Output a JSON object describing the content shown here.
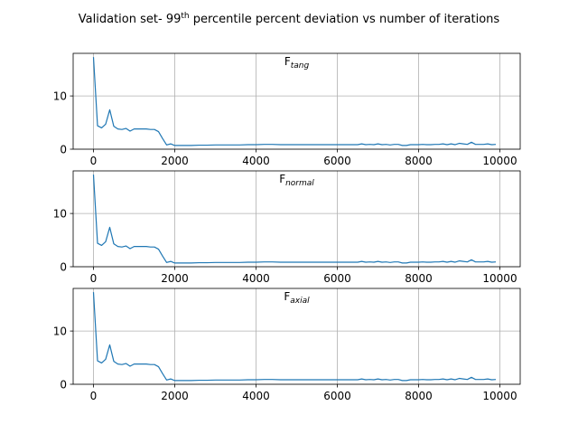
{
  "figure": {
    "suptitle_prefix": "Validation set- 99",
    "suptitle_superscript": "th",
    "suptitle_suffix": " percentile percent deviation vs number of iterations"
  },
  "colors": {
    "series": "#1f77b4",
    "grid": "#b0b0b0",
    "axis": "#000000"
  },
  "chart_data": [
    {
      "type": "line",
      "title_main": "F",
      "title_sub": "tang",
      "grid": true,
      "xlim": [
        -500,
        10500
      ],
      "ylim": [
        0,
        18
      ],
      "x_ticks": [
        0,
        2000,
        4000,
        6000,
        8000,
        10000
      ],
      "y_ticks": [
        0,
        10
      ],
      "x": [
        0,
        100,
        200,
        300,
        400,
        500,
        600,
        700,
        800,
        900,
        1000,
        1100,
        1200,
        1300,
        1400,
        1500,
        1600,
        1700,
        1800,
        1900,
        2000,
        2200,
        2400,
        2600,
        2800,
        3000,
        3200,
        3400,
        3600,
        3800,
        4000,
        4200,
        4400,
        4600,
        4800,
        5000,
        5200,
        5400,
        5600,
        5800,
        6000,
        6200,
        6400,
        6500,
        6600,
        6700,
        6800,
        6900,
        7000,
        7100,
        7200,
        7300,
        7400,
        7500,
        7600,
        7700,
        7800,
        7900,
        8000,
        8100,
        8200,
        8300,
        8400,
        8500,
        8600,
        8700,
        8800,
        8900,
        9000,
        9100,
        9200,
        9300,
        9400,
        9500,
        9600,
        9700,
        9800,
        9900
      ],
      "y": [
        17.3,
        4.4,
        4.0,
        4.7,
        7.4,
        4.3,
        3.8,
        3.7,
        3.9,
        3.4,
        3.8,
        3.8,
        3.8,
        3.8,
        3.7,
        3.7,
        3.3,
        2.0,
        0.8,
        1.0,
        0.7,
        0.7,
        0.7,
        0.75,
        0.75,
        0.8,
        0.8,
        0.8,
        0.8,
        0.85,
        0.85,
        0.9,
        0.9,
        0.85,
        0.85,
        0.85,
        0.85,
        0.85,
        0.85,
        0.85,
        0.85,
        0.85,
        0.85,
        0.85,
        1.0,
        0.85,
        0.9,
        0.85,
        1.0,
        0.85,
        0.9,
        0.8,
        0.9,
        0.9,
        0.7,
        0.7,
        0.85,
        0.85,
        0.85,
        0.9,
        0.85,
        0.85,
        0.9,
        0.9,
        1.0,
        0.85,
        1.0,
        0.85,
        1.1,
        1.0,
        0.9,
        1.3,
        0.9,
        0.9,
        0.9,
        1.0,
        0.85,
        0.9
      ]
    },
    {
      "type": "line",
      "title_main": "F",
      "title_sub": "normal",
      "grid": true,
      "xlim": [
        -500,
        10500
      ],
      "ylim": [
        0,
        18
      ],
      "x_ticks": [
        0,
        2000,
        4000,
        6000,
        8000,
        10000
      ],
      "y_ticks": [
        0,
        10
      ],
      "x": [
        0,
        100,
        200,
        300,
        400,
        500,
        600,
        700,
        800,
        900,
        1000,
        1100,
        1200,
        1300,
        1400,
        1500,
        1600,
        1700,
        1800,
        1900,
        2000,
        2200,
        2400,
        2600,
        2800,
        3000,
        3200,
        3400,
        3600,
        3800,
        4000,
        4200,
        4400,
        4600,
        4800,
        5000,
        5200,
        5400,
        5600,
        5800,
        6000,
        6200,
        6400,
        6500,
        6600,
        6700,
        6800,
        6900,
        7000,
        7100,
        7200,
        7300,
        7400,
        7500,
        7600,
        7700,
        7800,
        7900,
        8000,
        8100,
        8200,
        8300,
        8400,
        8500,
        8600,
        8700,
        8800,
        8900,
        9000,
        9100,
        9200,
        9300,
        9400,
        9500,
        9600,
        9700,
        9800,
        9900
      ],
      "y": [
        17.3,
        4.4,
        4.0,
        4.7,
        7.4,
        4.3,
        3.8,
        3.7,
        3.9,
        3.4,
        3.8,
        3.8,
        3.8,
        3.8,
        3.7,
        3.7,
        3.3,
        2.0,
        0.8,
        1.0,
        0.7,
        0.7,
        0.7,
        0.75,
        0.75,
        0.8,
        0.8,
        0.8,
        0.8,
        0.85,
        0.85,
        0.9,
        0.9,
        0.85,
        0.85,
        0.85,
        0.85,
        0.85,
        0.85,
        0.85,
        0.85,
        0.85,
        0.85,
        0.85,
        1.0,
        0.85,
        0.9,
        0.85,
        1.0,
        0.85,
        0.9,
        0.8,
        0.9,
        0.9,
        0.7,
        0.7,
        0.85,
        0.85,
        0.85,
        0.9,
        0.85,
        0.85,
        0.9,
        0.9,
        1.0,
        0.85,
        1.0,
        0.85,
        1.1,
        1.0,
        0.9,
        1.3,
        0.9,
        0.9,
        0.9,
        1.0,
        0.85,
        0.9
      ]
    },
    {
      "type": "line",
      "title_main": "F",
      "title_sub": "axial",
      "grid": true,
      "xlim": [
        -500,
        10500
      ],
      "ylim": [
        0,
        18
      ],
      "x_ticks": [
        0,
        2000,
        4000,
        6000,
        8000,
        10000
      ],
      "y_ticks": [
        0,
        10
      ],
      "x": [
        0,
        100,
        200,
        300,
        400,
        500,
        600,
        700,
        800,
        900,
        1000,
        1100,
        1200,
        1300,
        1400,
        1500,
        1600,
        1700,
        1800,
        1900,
        2000,
        2200,
        2400,
        2600,
        2800,
        3000,
        3200,
        3400,
        3600,
        3800,
        4000,
        4200,
        4400,
        4600,
        4800,
        5000,
        5200,
        5400,
        5600,
        5800,
        6000,
        6200,
        6400,
        6500,
        6600,
        6700,
        6800,
        6900,
        7000,
        7100,
        7200,
        7300,
        7400,
        7500,
        7600,
        7700,
        7800,
        7900,
        8000,
        8100,
        8200,
        8300,
        8400,
        8500,
        8600,
        8700,
        8800,
        8900,
        9000,
        9100,
        9200,
        9300,
        9400,
        9500,
        9600,
        9700,
        9800,
        9900
      ],
      "y": [
        17.3,
        4.4,
        4.0,
        4.7,
        7.4,
        4.3,
        3.8,
        3.7,
        3.9,
        3.4,
        3.8,
        3.8,
        3.8,
        3.8,
        3.7,
        3.7,
        3.3,
        2.0,
        0.8,
        1.0,
        0.7,
        0.7,
        0.7,
        0.75,
        0.75,
        0.8,
        0.8,
        0.8,
        0.8,
        0.85,
        0.85,
        0.9,
        0.9,
        0.85,
        0.85,
        0.85,
        0.85,
        0.85,
        0.85,
        0.85,
        0.85,
        0.85,
        0.85,
        0.85,
        1.0,
        0.85,
        0.9,
        0.85,
        1.0,
        0.85,
        0.9,
        0.8,
        0.9,
        0.9,
        0.7,
        0.7,
        0.85,
        0.85,
        0.85,
        0.9,
        0.85,
        0.85,
        0.9,
        0.9,
        1.0,
        0.85,
        1.0,
        0.85,
        1.1,
        1.0,
        0.9,
        1.3,
        0.9,
        0.9,
        0.9,
        1.0,
        0.85,
        0.9
      ]
    }
  ]
}
